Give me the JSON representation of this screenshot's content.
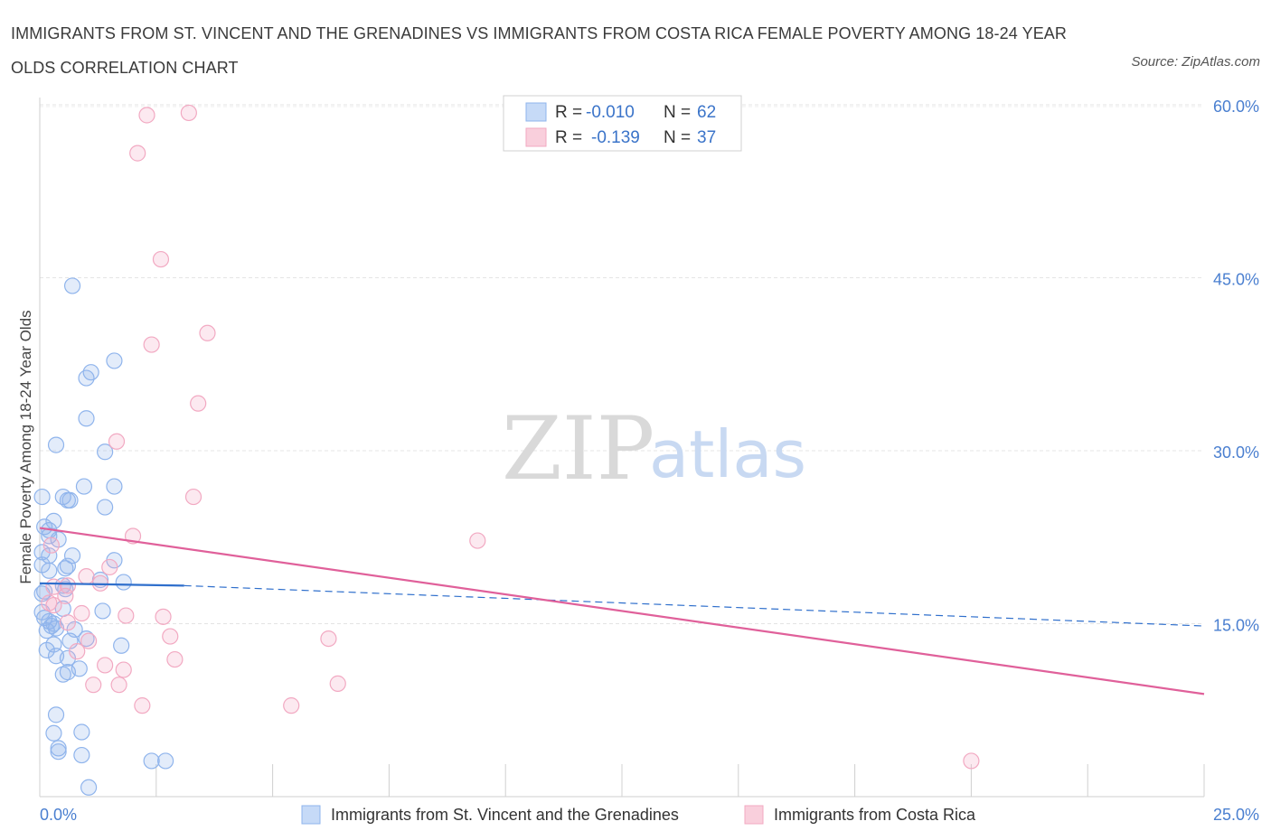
{
  "chart_data": {
    "type": "scatter",
    "title": "IMMIGRANTS FROM ST. VINCENT AND THE GRENADINES VS IMMIGRANTS FROM COSTA RICA FEMALE POVERTY AMONG 18-24 YEAR OLDS CORRELATION CHART",
    "source": "Source: ZipAtlas.com",
    "ylabel": "Female Poverty Among 18-24 Year Olds",
    "xlim": [
      0,
      25
    ],
    "ylim": [
      0,
      60
    ],
    "x_tick_labels": [
      "0.0%",
      "25.0%"
    ],
    "y_ticks": [
      {
        "value": 15,
        "label": "15.0%"
      },
      {
        "value": 30,
        "label": "30.0%"
      },
      {
        "value": 45,
        "label": "45.0%"
      },
      {
        "value": 60,
        "label": "60.0%"
      }
    ],
    "watermark": {
      "zip": "ZIP",
      "atlas": "atlas"
    },
    "legend": {
      "r_label": "R =",
      "n_label": "N =",
      "entries": [
        {
          "r": "-0.010",
          "n": "62"
        },
        {
          "r": "-0.139",
          "n": "37"
        }
      ]
    },
    "series": [
      {
        "name": "Immigrants from St. Vincent and the Grenadines",
        "color": "#8fb4ec",
        "line_color": "#2f6fcc",
        "trend": {
          "x0": 0,
          "y0": 18.5,
          "x1": 3.1,
          "y1": 18.3,
          "dash_x1": 25,
          "dash_y1": 14.8
        },
        "points": [
          [
            0.7,
            44.3
          ],
          [
            1.6,
            37.8
          ],
          [
            1.0,
            36.3
          ],
          [
            1.1,
            36.8
          ],
          [
            1.0,
            32.8
          ],
          [
            0.35,
            30.5
          ],
          [
            1.4,
            29.9
          ],
          [
            0.05,
            26.0
          ],
          [
            0.5,
            26.0
          ],
          [
            0.6,
            25.7
          ],
          [
            0.95,
            26.9
          ],
          [
            1.6,
            26.9
          ],
          [
            0.65,
            25.7
          ],
          [
            1.4,
            25.1
          ],
          [
            0.3,
            23.9
          ],
          [
            0.1,
            23.4
          ],
          [
            0.2,
            23.1
          ],
          [
            0.2,
            22.6
          ],
          [
            0.4,
            22.3
          ],
          [
            0.05,
            21.2
          ],
          [
            0.2,
            20.9
          ],
          [
            0.7,
            20.9
          ],
          [
            1.6,
            20.5
          ],
          [
            0.05,
            20.1
          ],
          [
            0.55,
            19.8
          ],
          [
            0.6,
            20.0
          ],
          [
            1.3,
            18.8
          ],
          [
            1.8,
            18.6
          ],
          [
            0.5,
            18.3
          ],
          [
            0.55,
            18.0
          ],
          [
            0.05,
            17.6
          ],
          [
            0.1,
            17.8
          ],
          [
            1.35,
            16.1
          ],
          [
            0.5,
            16.3
          ],
          [
            0.05,
            16.0
          ],
          [
            0.1,
            15.5
          ],
          [
            0.2,
            15.2
          ],
          [
            0.3,
            15.0
          ],
          [
            0.35,
            14.6
          ],
          [
            0.15,
            14.4
          ],
          [
            0.75,
            14.5
          ],
          [
            0.65,
            13.5
          ],
          [
            1.75,
            13.1
          ],
          [
            0.3,
            13.2
          ],
          [
            0.15,
            12.7
          ],
          [
            0.35,
            12.2
          ],
          [
            0.6,
            12.0
          ],
          [
            0.85,
            11.1
          ],
          [
            0.6,
            10.8
          ],
          [
            0.5,
            10.6
          ],
          [
            0.35,
            7.1
          ],
          [
            0.3,
            5.5
          ],
          [
            0.9,
            5.6
          ],
          [
            0.4,
            4.2
          ],
          [
            0.4,
            3.9
          ],
          [
            0.9,
            3.6
          ],
          [
            2.4,
            3.1
          ],
          [
            2.7,
            3.1
          ],
          [
            1.05,
            0.8
          ],
          [
            0.2,
            19.6
          ],
          [
            0.25,
            14.8
          ],
          [
            1.0,
            13.7
          ]
        ]
      },
      {
        "name": "Immigrants from Costa Rica",
        "color": "#f2a9c2",
        "line_color": "#e0609a",
        "trend": {
          "x0": 0,
          "y0": 23.3,
          "x1": 25,
          "y1": 8.9
        },
        "points": [
          [
            2.3,
            59.1
          ],
          [
            3.2,
            59.3
          ],
          [
            2.1,
            55.8
          ],
          [
            2.6,
            46.6
          ],
          [
            3.6,
            40.2
          ],
          [
            2.4,
            39.2
          ],
          [
            3.4,
            34.1
          ],
          [
            1.65,
            30.8
          ],
          [
            3.3,
            26.0
          ],
          [
            2.0,
            22.6
          ],
          [
            9.4,
            22.2
          ],
          [
            0.25,
            21.8
          ],
          [
            1.5,
            19.9
          ],
          [
            1.0,
            19.1
          ],
          [
            0.3,
            18.2
          ],
          [
            0.6,
            18.3
          ],
          [
            1.3,
            18.5
          ],
          [
            0.55,
            17.4
          ],
          [
            0.3,
            16.6
          ],
          [
            0.9,
            15.9
          ],
          [
            1.85,
            15.7
          ],
          [
            2.65,
            15.6
          ],
          [
            0.6,
            15.1
          ],
          [
            2.8,
            13.9
          ],
          [
            6.2,
            13.7
          ],
          [
            1.05,
            13.5
          ],
          [
            0.8,
            12.6
          ],
          [
            2.9,
            11.9
          ],
          [
            1.4,
            11.4
          ],
          [
            1.8,
            11.0
          ],
          [
            1.15,
            9.7
          ],
          [
            1.7,
            9.7
          ],
          [
            6.4,
            9.8
          ],
          [
            2.2,
            7.9
          ],
          [
            5.4,
            7.9
          ],
          [
            20.0,
            3.1
          ],
          [
            0.2,
            16.8
          ]
        ]
      }
    ]
  }
}
